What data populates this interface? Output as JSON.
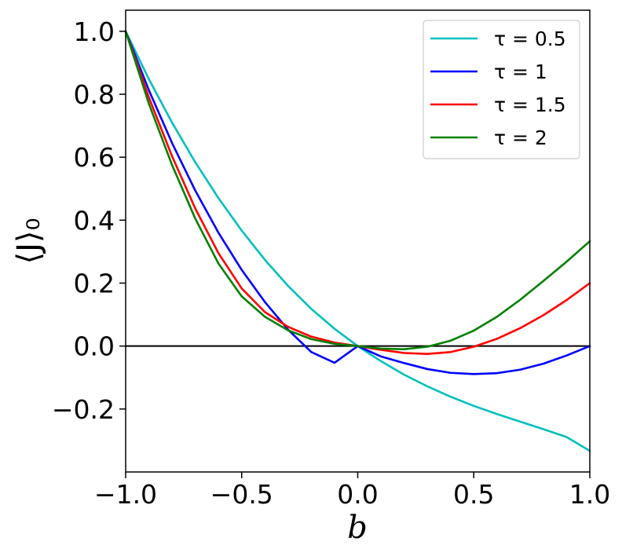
{
  "chart_data": {
    "type": "line",
    "title": "",
    "xlabel": "b",
    "ylabel": "⟨J⟩₀",
    "xlim": [
      -1.0,
      1.0
    ],
    "ylim": [
      -0.4,
      1.067
    ],
    "x_ticks": [
      -1.0,
      -0.5,
      0.0,
      0.5,
      1.0
    ],
    "x_tick_labels": [
      "−1.0",
      "−0.5",
      "0.0",
      "0.5",
      "1.0"
    ],
    "y_ticks": [
      -0.2,
      0.0,
      0.2,
      0.4,
      0.6,
      0.8,
      1.0
    ],
    "y_tick_labels": [
      "−0.2",
      "0.0",
      "0.2",
      "0.4",
      "0.6",
      "0.8",
      "1.0"
    ],
    "grid": false,
    "reference_line": {
      "y": 0.0,
      "color": "#000000"
    },
    "legend_position": "top-right",
    "x": [
      -1.0,
      -0.9,
      -0.8,
      -0.7,
      -0.6,
      -0.5,
      -0.4,
      -0.3,
      -0.2,
      -0.1,
      0.0,
      0.1,
      0.2,
      0.3,
      0.4,
      0.5,
      0.6,
      0.7,
      0.8,
      0.9,
      1.0
    ],
    "series": [
      {
        "name": "τ = 0.5",
        "color": "#00bfbf",
        "values": [
          1.0,
          0.848,
          0.71,
          0.584,
          0.47,
          0.367,
          0.274,
          0.191,
          0.118,
          0.055,
          0.0,
          -0.048,
          -0.091,
          -0.128,
          -0.161,
          -0.19,
          -0.216,
          -0.24,
          -0.264,
          -0.289,
          -0.333
        ]
      },
      {
        "name": "τ = 1",
        "color": "#0000ff",
        "values": [
          1.0,
          0.813,
          0.645,
          0.494,
          0.36,
          0.242,
          0.14,
          0.052,
          -0.019,
          -0.053,
          0.0,
          -0.033,
          -0.054,
          -0.073,
          -0.085,
          -0.089,
          -0.086,
          -0.075,
          -0.056,
          -0.03,
          0.0
        ]
      },
      {
        "name": "τ = 1.5",
        "color": "#ff0000",
        "values": [
          1.0,
          0.79,
          0.603,
          0.437,
          0.295,
          0.183,
          0.108,
          0.061,
          0.03,
          0.011,
          0.0,
          -0.012,
          -0.022,
          -0.025,
          -0.019,
          -0.002,
          0.023,
          0.057,
          0.098,
          0.146,
          0.2
        ]
      },
      {
        "name": "τ = 2",
        "color": "#008000",
        "values": [
          1.0,
          0.77,
          0.575,
          0.405,
          0.262,
          0.158,
          0.093,
          0.05,
          0.022,
          0.007,
          0.0,
          -0.008,
          -0.01,
          -0.002,
          0.017,
          0.049,
          0.093,
          0.147,
          0.207,
          0.268,
          0.333
        ]
      }
    ]
  }
}
